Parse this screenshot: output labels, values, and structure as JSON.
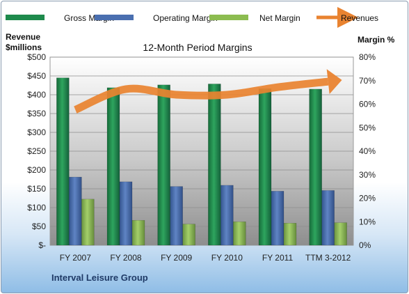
{
  "chart_data": {
    "type": "bar",
    "title": "12-Month Period Margins",
    "categories": [
      "FY 2007",
      "FY 2008",
      "FY 2009",
      "FY 2010",
      "FY 2011",
      "TTM 3-2012"
    ],
    "series": [
      {
        "name": "Gross Margin",
        "axis": "right",
        "color": "#1e8a4c",
        "values": [
          71.2,
          67.0,
          68.2,
          68.6,
          66.6,
          66.4
        ]
      },
      {
        "name": "Operating Margin",
        "axis": "right",
        "color": "#4a6fb0",
        "values": [
          29.0,
          27.0,
          25.0,
          25.5,
          23.0,
          23.3
        ]
      },
      {
        "name": "Net Margin",
        "axis": "right",
        "color": "#8cbc50",
        "values": [
          19.6,
          10.6,
          9.0,
          10.0,
          9.4,
          9.6
        ]
      },
      {
        "name": "Revenues",
        "axis": "left",
        "type": "line",
        "color": "#e98330",
        "values": [
          360,
          415,
          400,
          400,
          420,
          435
        ]
      }
    ],
    "y_left": {
      "label_line1": "Revenue",
      "label_line2": "$millions",
      "range": [
        0,
        500
      ],
      "ticks": [
        "$-",
        "$50",
        "$100",
        "$150",
        "$200",
        "$250",
        "$300",
        "$350",
        "$400",
        "$450",
        "$500"
      ]
    },
    "y_right": {
      "label": "Margin %",
      "range": [
        0,
        80
      ],
      "ticks": [
        "0%",
        "10%",
        "20%",
        "30%",
        "40%",
        "50%",
        "60%",
        "70%",
        "80%"
      ]
    },
    "gridlines": true,
    "legend_position": "top"
  },
  "footer": {
    "company": "Interval Leisure Group"
  }
}
